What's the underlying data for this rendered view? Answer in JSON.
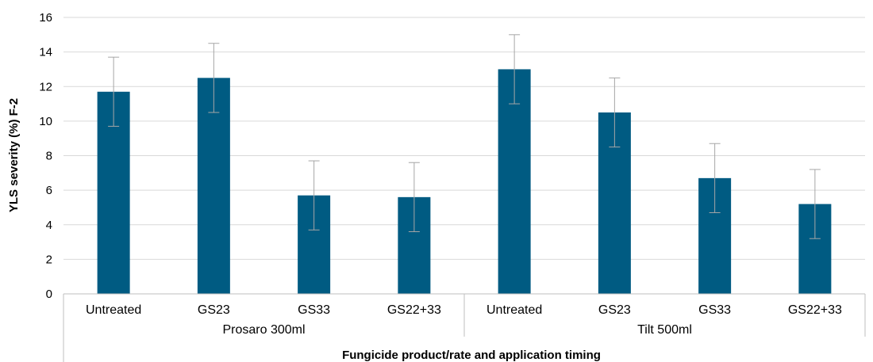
{
  "chart_data": {
    "type": "bar",
    "ylabel": "YLS severity (%) F-2",
    "xlabel": "Fungicide product/rate and application timing",
    "ylim": [
      0,
      16
    ],
    "yticks": [
      0,
      2,
      4,
      6,
      8,
      10,
      12,
      14,
      16
    ],
    "grid": true,
    "groups": [
      {
        "label": "Prosaro 300ml",
        "categories": [
          "Untreated",
          "GS23",
          "GS33",
          "GS22+33"
        ]
      },
      {
        "label": "Tilt 500ml",
        "categories": [
          "Untreated",
          "GS23",
          "GS33",
          "GS22+33"
        ]
      }
    ],
    "values": [
      11.7,
      12.5,
      5.7,
      5.6,
      13.0,
      10.5,
      6.7,
      5.2
    ],
    "error": [
      2.0,
      2.0,
      2.0,
      2.0,
      2.0,
      2.0,
      2.0,
      2.0
    ],
    "colors": {
      "bar": "#005B82",
      "grid": "#D9D9D9",
      "axis": "#BFBFBF",
      "error_bar": "#A6A6A6"
    }
  }
}
